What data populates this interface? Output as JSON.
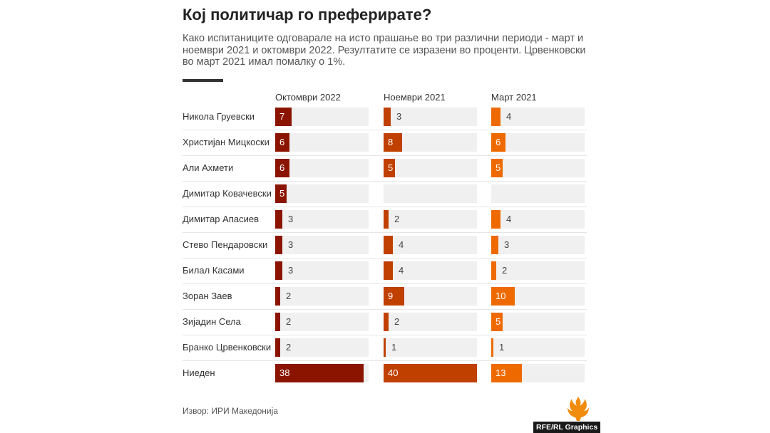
{
  "title": "Кој политичар го преферирате?",
  "subtitle": "Како испитаниците одговарале на исто прашање во три различни периоди - март и ноември 2021 и октомври 2022. Резултатите се изразени во проценти. Црвенковски во март 2021 имал помалку о 1%.",
  "source": "Извор: ИРИ Македонија",
  "credit": "RFE/RL Graphics",
  "logo_icon": "rferl-flame-icon",
  "colors": {
    "oct2022": "#8b1400",
    "nov2021": "#c04000",
    "mar2021": "#ee6a00",
    "track": "#f0f0f0",
    "logo": "#f28c0f"
  },
  "chart_data": {
    "type": "bar",
    "orientation": "horizontal",
    "scale_max": 40,
    "categories": [
      "Никола Груевски",
      "Христијан Мицкоски",
      "Али Ахмети",
      "Димитар Ковачевски",
      "Димитар Апасиев",
      "Стево Пендаровски",
      "Билал Касами",
      "Зоран Заев",
      "Зијадин Села",
      "Бранко Црвенковски",
      "Ниеден"
    ],
    "series": [
      {
        "name": "Октомври 2022",
        "color": "#8b1400",
        "values": [
          7,
          6,
          6,
          5,
          3,
          3,
          3,
          2,
          2,
          2,
          38
        ]
      },
      {
        "name": "Ноември 2021",
        "color": "#c04000",
        "values": [
          3,
          8,
          5,
          null,
          2,
          4,
          4,
          9,
          2,
          1,
          40
        ]
      },
      {
        "name": "Март 2021",
        "color": "#ee6a00",
        "values": [
          4,
          6,
          5,
          null,
          4,
          3,
          2,
          10,
          5,
          1,
          13
        ]
      }
    ]
  }
}
